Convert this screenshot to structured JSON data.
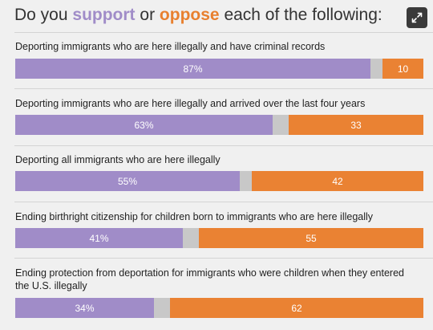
{
  "header": {
    "prefix": "Do you",
    "support_word": "support",
    "or_word": "or",
    "oppose_word": "oppose",
    "suffix": "each of the following:",
    "expand_icon": "expand-icon"
  },
  "chart_data": {
    "type": "bar",
    "stacked": true,
    "orientation": "horizontal",
    "categories": [
      "Deporting immigrants who are here illegally and have criminal records",
      "Deporting immigrants who are here illegally and arrived over the last four years",
      "Deporting all immigrants who are here illegally",
      "Ending birthright citizenship for children born to immigrants who are here illegally",
      "Ending protection from deportation for immigrants who were children when they entered the U.S. illegally"
    ],
    "series": [
      {
        "name": "support",
        "values": [
          87,
          63,
          55,
          41,
          34
        ],
        "labels": [
          "87%",
          "63%",
          "55%",
          "41%",
          "34%"
        ],
        "color": "#a08cc8"
      },
      {
        "name": "oppose",
        "values": [
          10,
          33,
          42,
          55,
          62
        ],
        "labels": [
          "10",
          "33",
          "42",
          "55",
          "62"
        ],
        "color": "#ea8233"
      }
    ],
    "neutral_color": "#c8c8c8",
    "xlim": [
      0,
      100
    ]
  }
}
